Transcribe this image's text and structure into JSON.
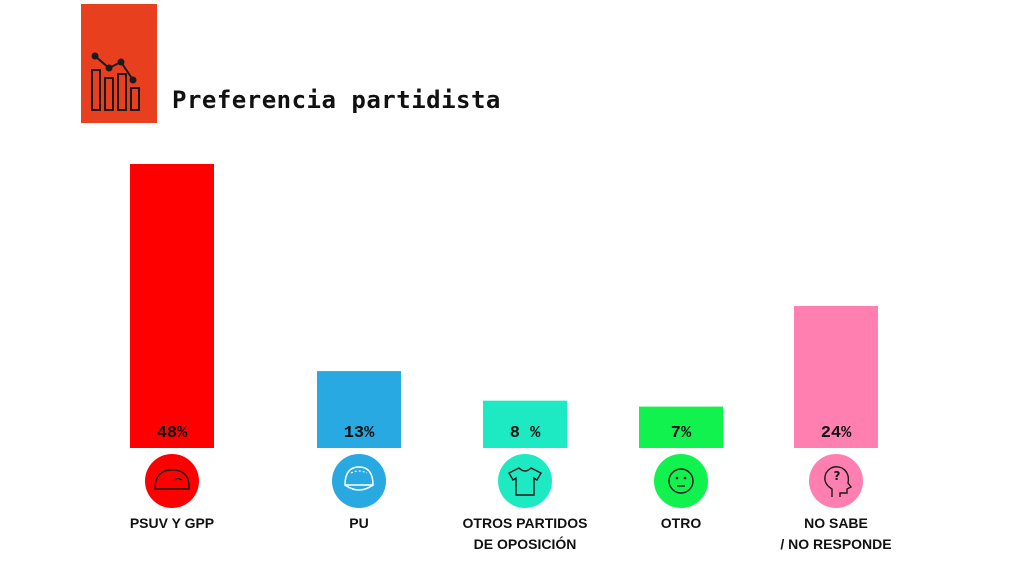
{
  "header": {
    "title": "Preferencia partidista",
    "icon": "bar-chart-icon"
  },
  "chart_data": {
    "type": "bar",
    "title": "Preferencia partidista",
    "xlabel": "",
    "ylabel": "",
    "ylim": [
      0,
      48
    ],
    "grid": false,
    "categories": [
      "PSUV Y GPP",
      "PU",
      "OTROS PARTIDOS\nDE OPOSICIÓN",
      "OTRO",
      "NO SABE\n/ NO RESPONDE"
    ],
    "values": [
      48,
      13,
      8,
      7,
      24
    ],
    "value_labels": [
      "48%",
      "13%",
      "8  %",
      "7%",
      "24%"
    ],
    "colors": [
      "#ff0000",
      "#29a9e1",
      "#1de9c3",
      "#12f24e",
      "#ff80b0"
    ],
    "icons": [
      "beret-icon",
      "cap-icon",
      "shirt-icon",
      "smiley-icon",
      "question-head-icon"
    ]
  }
}
